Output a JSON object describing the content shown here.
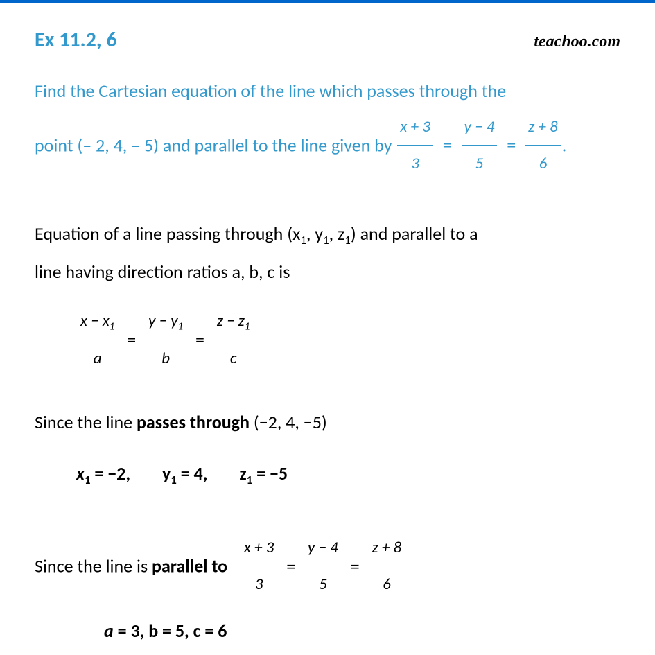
{
  "header": {
    "title": "Ex 11.2, 6",
    "logo": "teachoo.com"
  },
  "question": {
    "line1": "Find the Cartesian equation of the line which passes through the",
    "line2_pre": "point (– 2, 4, – 5) and parallel to the line given by",
    "f1_num": "x + 3",
    "f1_den": "3",
    "f2_num": "y − 4",
    "f2_den": "5",
    "f3_num": "z + 8",
    "f3_den": "6",
    "period": "."
  },
  "sol": {
    "p1_a": "Equation of a line passing through (x",
    "p1_b": ", y",
    "p1_c": ", z",
    "p1_d": ") and parallel to a",
    "p1_line2": "line having direction ratios a, b, c is",
    "gf1_num_a": "x − x",
    "gf1_den": "a",
    "gf2_num_a": "y − y",
    "gf2_den": "b",
    "gf3_num_a": "z − z",
    "gf3_den": "c",
    "sub1": "1",
    "p2_pre": "Since the line ",
    "p2_bold": "passes through",
    "p2_post": " (−2, 4,  −5)",
    "v_x": "x",
    "v_x_eq": " = −2,",
    "v_y": "y",
    "v_y_eq": " = 4,",
    "v_z": "z",
    "v_z_eq": " = −5",
    "p3_pre": "Since the line is ",
    "p3_bold": "parallel to",
    "pf1_num": "x + 3",
    "pf1_den": "3",
    "pf2_num": "y − 4",
    "pf2_den": "5",
    "pf3_num": "z + 8",
    "pf3_den": "6",
    "final_a": "a",
    "final_rest": " = 3, b = 5, c = 6"
  },
  "eq": "="
}
